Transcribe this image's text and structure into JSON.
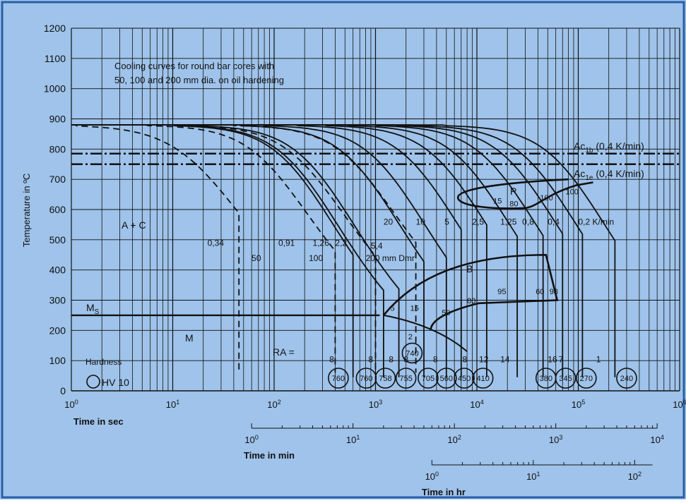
{
  "colors": {
    "background": "#9fc3ea",
    "frame": "#2a5fa8",
    "ink": "#111111"
  },
  "chart_data": {
    "type": "line",
    "title": "",
    "annotation": [
      "Cooling curves for round bar cores with",
      "50, 100 and 200 mm dia. on oil hardening"
    ],
    "ylabel": "Temperature in ºC",
    "ylim": [
      0,
      1200
    ],
    "y_ticks": [
      "0",
      "100",
      "200",
      "300",
      "400",
      "500",
      "600",
      "700",
      "800",
      "900",
      "1000",
      "1100",
      "1200"
    ],
    "x_scale": "log",
    "xlim": [
      1,
      1000000
    ],
    "x_axes": [
      {
        "label": "Time in sec",
        "ticks": [
          {
            "m": "10",
            "e": "0"
          },
          {
            "m": "10",
            "e": "1"
          },
          {
            "m": "10",
            "e": "2"
          },
          {
            "m": "10",
            "e": "3"
          },
          {
            "m": "10",
            "e": "4"
          },
          {
            "m": "10",
            "e": "5"
          },
          {
            "m": "10",
            "e": "6"
          }
        ]
      },
      {
        "label": "Time in min",
        "ticks": [
          {
            "m": "10",
            "e": "0"
          },
          {
            "m": "10",
            "e": "1"
          },
          {
            "m": "10",
            "e": "2"
          },
          {
            "m": "10",
            "e": "3"
          },
          {
            "m": "10",
            "e": "4"
          }
        ]
      },
      {
        "label": "Time in hr",
        "ticks": [
          {
            "m": "10",
            "e": "0"
          },
          {
            "m": "10",
            "e": "1"
          },
          {
            "m": "10",
            "e": "2"
          }
        ]
      }
    ],
    "reference_lines": [
      {
        "name": "Ac1b",
        "label_main": "Ac",
        "label_sub": "1b",
        "label_tail": " (0,4 K/min)",
        "y": 785
      },
      {
        "name": "Ac1e",
        "label_main": "Ac",
        "label_sub": "1e",
        "label_tail": " (0,4 K/min)",
        "y": 750
      },
      {
        "name": "MS",
        "label_main": "M",
        "label_sub": "S",
        "label_tail": "",
        "y": 250
      }
    ],
    "phase_labels": [
      "A + C",
      "P",
      "B",
      "M"
    ],
    "cooling_curves": [
      {
        "label": "0,34",
        "dashed": true,
        "start": 880,
        "t50": 22,
        "k": 1.45,
        "t100": 45,
        "end": 100
      },
      {
        "label": "0,91",
        "dashed": false,
        "start": 880,
        "t50": 200,
        "k": 1.6,
        "t100": 600,
        "end": 0
      },
      {
        "label": "1,26",
        "dashed": false,
        "start": 880,
        "t50": 220,
        "k": 1.6,
        "t100": 1200,
        "end": 0
      },
      {
        "label": "2,2",
        "dashed": false,
        "start": 880,
        "t50": 320,
        "k": 1.6,
        "t100": 1700,
        "end": 0
      },
      {
        "label": "5,4",
        "dashed": false,
        "start": 880,
        "t50": 900,
        "k": 1.6,
        "t100": 3000,
        "end": 0
      },
      {
        "label": "20",
        "dashed": false,
        "start": 880,
        "t50": 1600,
        "k": 1.6,
        "t100": 5000,
        "end": 0
      },
      {
        "label": "10",
        "dashed": false,
        "start": 880,
        "t50": 3400,
        "k": 1.6,
        "t100": 7000,
        "end": 0
      },
      {
        "label": "5",
        "dashed": false,
        "start": 880,
        "t50": 6500,
        "k": 1.6,
        "t100": 12500,
        "end": 0
      },
      {
        "label": "2,5",
        "dashed": false,
        "start": 880,
        "t50": 11000,
        "k": 1.6,
        "t100": 25000,
        "end": 0
      },
      {
        "label": "1,25",
        "dashed": false,
        "start": 880,
        "t50": 20000,
        "k": 1.6,
        "t100": 45000,
        "end": 0
      },
      {
        "label": "0,8",
        "dashed": false,
        "start": 880,
        "t50": 32000,
        "k": 1.6,
        "t100": 70000,
        "end": 0
      },
      {
        "label": "0,4",
        "dashed": false,
        "start": 880,
        "t50": 50000,
        "k": 1.6,
        "t100": 110000,
        "end": 0
      },
      {
        "label": "0,2 K/min",
        "dashed": false,
        "start": 880,
        "t50": 95000,
        "k": 1.6,
        "t100": 230000,
        "end": 0
      },
      {
        "label": "50",
        "dashed": true,
        "start": 880,
        "t50": 110,
        "k": 1.6,
        "t100": 400,
        "end": 100
      },
      {
        "label": "100",
        "dashed": true,
        "start": 880,
        "t50": 250,
        "k": 1.6,
        "t100": 1000,
        "end": 100
      },
      {
        "label": "200 mm Dmr",
        "dashed": true,
        "start": 880,
        "t50": 800,
        "k": 1.6,
        "t100": 2500,
        "end": 100
      }
    ],
    "curve_value_labels": [
      {
        "text": "0,34",
        "t": 22,
        "T": 480
      },
      {
        "text": "0,91",
        "t": 110,
        "T": 480
      },
      {
        "text": "1,26",
        "t": 240,
        "T": 480
      },
      {
        "text": "2,2",
        "t": 400,
        "T": 480
      },
      {
        "text": "5,4",
        "t": 900,
        "T": 470
      },
      {
        "text": "20",
        "t": 1200,
        "T": 550
      },
      {
        "text": "10",
        "t": 2500,
        "T": 550
      },
      {
        "text": "5",
        "t": 4800,
        "T": 550
      },
      {
        "text": "2,5",
        "t": 9000,
        "T": 550
      },
      {
        "text": "1,25",
        "t": 17000,
        "T": 550
      },
      {
        "text": "0,8",
        "t": 28000,
        "T": 550
      },
      {
        "text": "0,4",
        "t": 50000,
        "T": 550
      },
      {
        "text": "0,2 K/min",
        "t": 100000,
        "T": 550
      },
      {
        "text": "50",
        "t": 60,
        "T": 430
      },
      {
        "text": "100",
        "t": 220,
        "T": 430
      },
      {
        "text": "200 mm Dmr",
        "t": 800,
        "T": 430
      }
    ],
    "phase_percent_labels": [
      {
        "text": "15",
        "t": 14500,
        "T": 620
      },
      {
        "text": "80",
        "t": 21000,
        "T": 610
      },
      {
        "text": "100",
        "t": 42000,
        "T": 630
      },
      {
        "text": "100",
        "t": 75000,
        "T": 650
      },
      {
        "text": "5",
        "t": 1400,
        "T": 265
      },
      {
        "text": "15",
        "t": 2200,
        "T": 265
      },
      {
        "text": "50",
        "t": 4500,
        "T": 250
      },
      {
        "text": "80",
        "t": 8000,
        "T": 290
      },
      {
        "text": "95",
        "t": 16000,
        "T": 320
      },
      {
        "text": "60",
        "t": 38000,
        "T": 320
      },
      {
        "text": "98",
        "t": 52000,
        "T": 320
      },
      {
        "text": "2",
        "t": 2100,
        "T": 170
      }
    ],
    "bottom_numbers": [
      {
        "text": "8",
        "t": 350
      },
      {
        "text": "8",
        "t": 850
      },
      {
        "text": "8",
        "t": 1350
      },
      {
        "text": "8",
        "t": 1900
      },
      {
        "text": "8",
        "t": 3700
      },
      {
        "text": "8",
        "t": 7200
      },
      {
        "text": "12",
        "t": 10500
      },
      {
        "text": "14",
        "t": 17000
      },
      {
        "text": "16",
        "t": 50000
      },
      {
        "text": "7",
        "t": 64000
      },
      {
        "text": "1",
        "t": 150000
      }
    ],
    "retained_austenite_label": "RA =",
    "hardness_legend": {
      "title": "Hardness",
      "symbol_label": "HV 10"
    },
    "hardness_values": [
      {
        "value": "760",
        "t": 430,
        "T": 42
      },
      {
        "value": "760",
        "t": 810,
        "T": 42
      },
      {
        "value": "758",
        "t": 1250,
        "T": 42
      },
      {
        "value": "755",
        "t": 2000,
        "T": 42
      },
      {
        "value": "740",
        "t": 2300,
        "T": 125
      },
      {
        "value": "705",
        "t": 3300,
        "T": 42
      },
      {
        "value": "560",
        "t": 5000,
        "T": 42
      },
      {
        "value": "450",
        "t": 7500,
        "T": 42
      },
      {
        "value": "410",
        "t": 11500,
        "T": 42
      },
      {
        "value": "380",
        "t": 48000,
        "T": 42
      },
      {
        "value": "345",
        "t": 75000,
        "T": 42
      },
      {
        "value": "270",
        "t": 120000,
        "T": 42
      },
      {
        "value": "240",
        "t": 300000,
        "T": 42
      }
    ]
  }
}
